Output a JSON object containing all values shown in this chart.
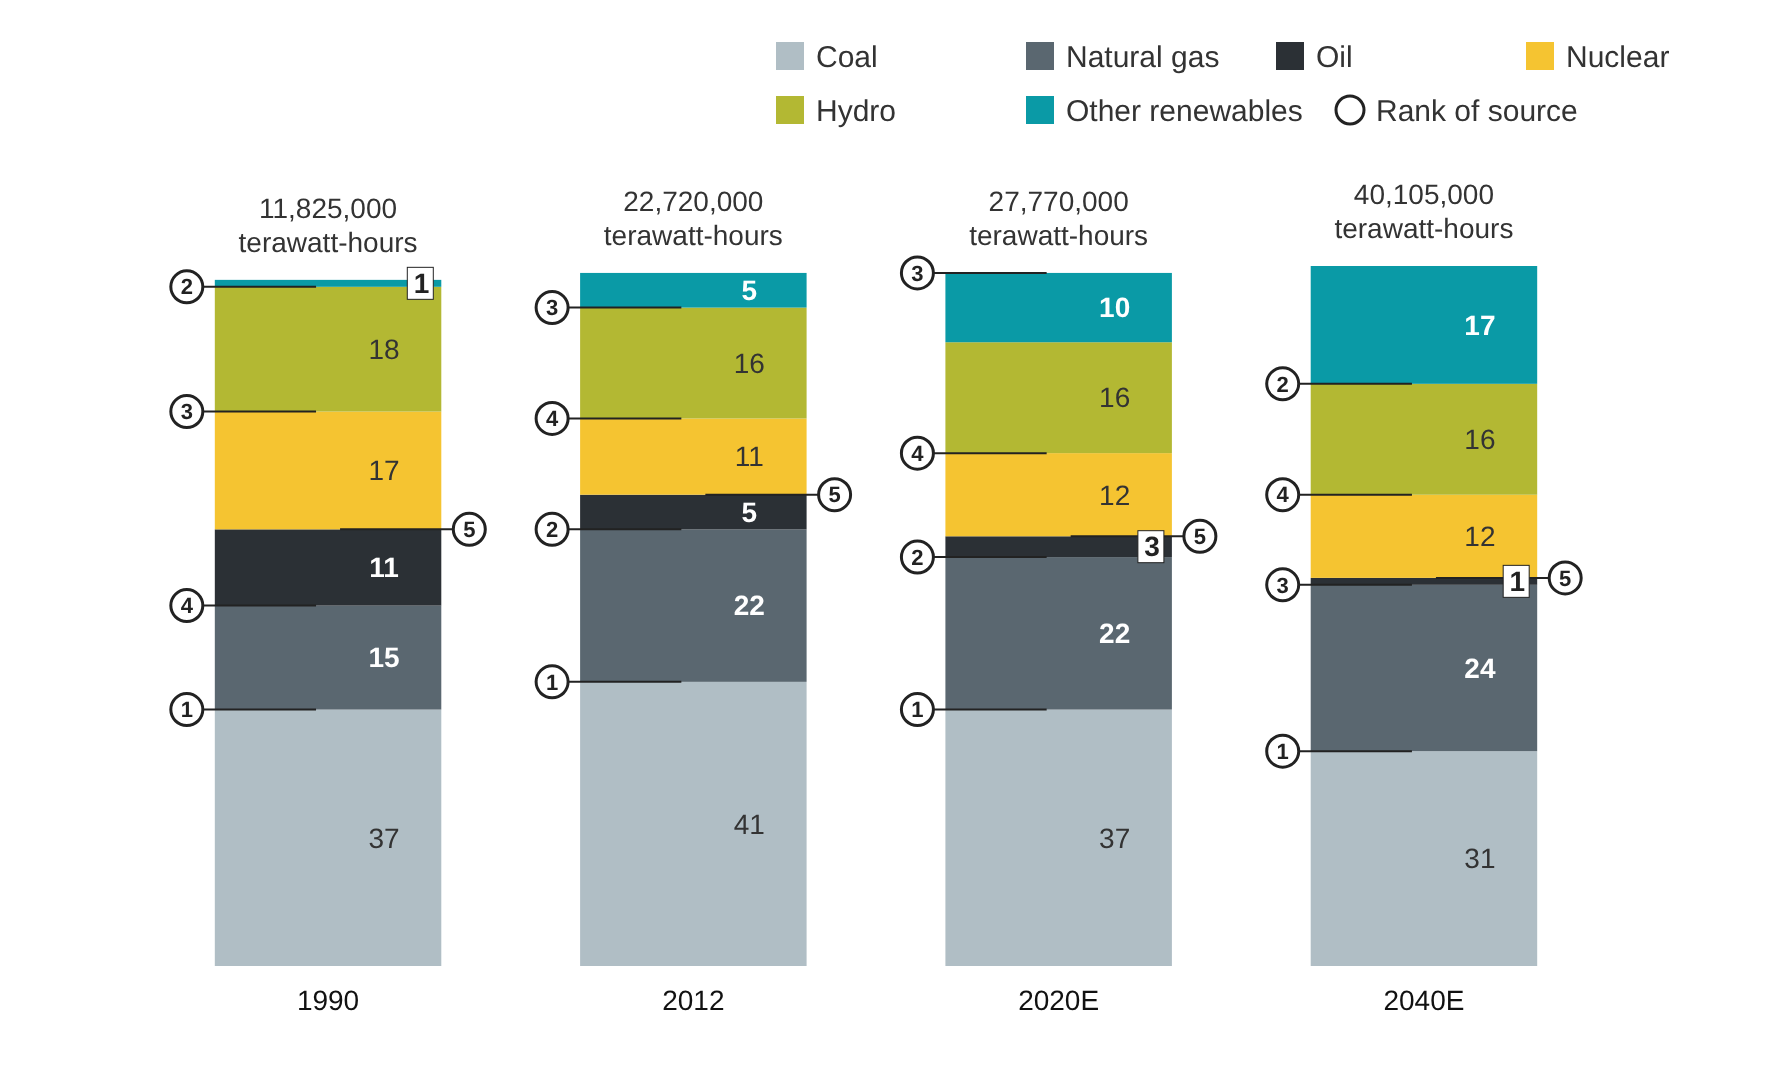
{
  "chart_data": {
    "type": "bar",
    "stacked": true,
    "data_labels": true,
    "legend": "top right",
    "categories": [
      "1990",
      "2012",
      "2020E",
      "2040E"
    ],
    "series": [
      {
        "name": "Coal",
        "color": "#b0bec5",
        "values": [
          37,
          41,
          37,
          31
        ]
      },
      {
        "name": "Natural gas",
        "color": "#5a6770",
        "values": [
          15,
          22,
          22,
          24
        ]
      },
      {
        "name": "Oil",
        "color": "#2b3035",
        "values": [
          11,
          5,
          3,
          1
        ]
      },
      {
        "name": "Nuclear",
        "color": "#f5c431",
        "values": [
          17,
          11,
          12,
          12
        ]
      },
      {
        "name": "Hydro",
        "color": "#b3b833",
        "values": [
          18,
          16,
          16,
          16
        ]
      },
      {
        "name": "Other renewables",
        "color": "#0a9aa6",
        "values": [
          1,
          5,
          10,
          17
        ]
      }
    ],
    "annotations": [
      "Rank of source",
      {
        "text": "11,825,000\nterawatt-hours",
        "x": "1990",
        "y": 99
      },
      {
        "text": "22,720,000\nterawatt-hours",
        "x": "2012",
        "y": 100
      },
      {
        "text": "27,770,000\nterawatt-hours",
        "x": "2020E",
        "y": 100
      },
      {
        "text": "40,105,000\nterawatt-hours",
        "x": "2040E",
        "y": 101
      },
      {
        "text": "1",
        "x": "1990",
        "y": 37
      },
      {
        "text": "4",
        "x": "1990",
        "y": 52
      },
      {
        "text": "5",
        "x": "1990",
        "y": 63
      },
      {
        "text": "3",
        "x": "1990",
        "y": 80
      },
      {
        "text": "2",
        "x": "1990",
        "y": 98
      },
      {
        "text": "1",
        "x": "2012",
        "y": 41
      },
      {
        "text": "2",
        "x": "2012",
        "y": 63
      },
      {
        "text": "5",
        "x": "2012",
        "y": 68
      },
      {
        "text": "4",
        "x": "2012",
        "y": 79
      },
      {
        "text": "3",
        "x": "2012",
        "y": 95
      },
      {
        "text": "1",
        "x": "2020E",
        "y": 37
      },
      {
        "text": "2",
        "x": "2020E",
        "y": 59
      },
      {
        "text": "5",
        "x": "2020E",
        "y": 62
      },
      {
        "text": "4",
        "x": "2020E",
        "y": 74
      },
      {
        "text": "3",
        "x": "2020E",
        "y": 100
      },
      {
        "text": "1",
        "x": "2040E",
        "y": 31
      },
      {
        "text": "3",
        "x": "2040E",
        "y": 55
      },
      {
        "text": "5",
        "x": "2040E",
        "y": 56
      },
      {
        "text": "4",
        "x": "2040E",
        "y": 68
      },
      {
        "text": "2",
        "x": "2040E",
        "y": 84
      }
    ]
  }
}
